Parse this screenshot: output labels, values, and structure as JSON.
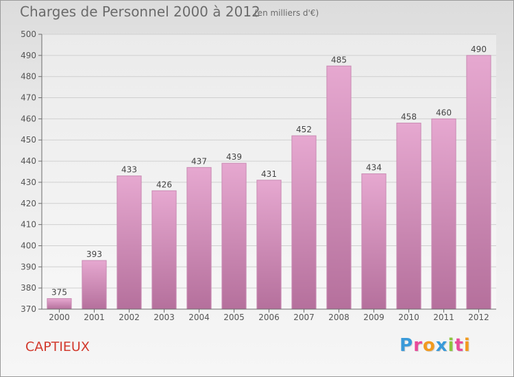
{
  "title": "Charges de Personnel 2000 à 2012",
  "subtitle": "(en milliers d'€)",
  "town": "CAPTIEUX",
  "logo_text": "Proxiti",
  "colors": {
    "bar_top": "#e6a8d0",
    "bar_bottom": "#b5709c",
    "bar_edge": "#c98ab3",
    "axis": "#6b6b6b",
    "grid": "#cfcfcf",
    "town": "#d2392c"
  },
  "chart_data": {
    "type": "bar",
    "categories": [
      "2000",
      "2001",
      "2002",
      "2003",
      "2004",
      "2005",
      "2006",
      "2007",
      "2008",
      "2009",
      "2010",
      "2011",
      "2012"
    ],
    "values": [
      375,
      393,
      433,
      426,
      437,
      439,
      431,
      452,
      485,
      434,
      458,
      460,
      490
    ],
    "title": "Charges de Personnel 2000 à 2012",
    "subtitle": "(en milliers d'€)",
    "xlabel": "",
    "ylabel": "",
    "ylim": [
      370,
      500
    ],
    "yticks": [
      370,
      380,
      390,
      400,
      410,
      420,
      430,
      440,
      450,
      460,
      470,
      480,
      490,
      500
    ],
    "grid": true,
    "data_labels": true
  }
}
